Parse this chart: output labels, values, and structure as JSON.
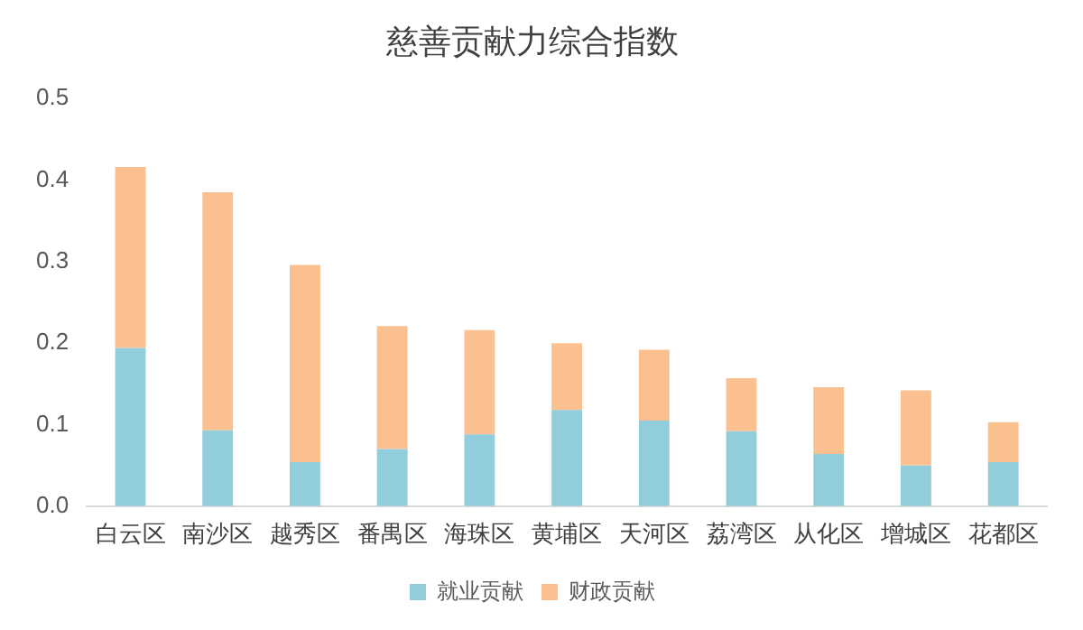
{
  "chart_data": {
    "type": "bar",
    "title": "慈善贡献力综合指数",
    "categories": [
      "白云区",
      "南沙区",
      "越秀区",
      "番禺区",
      "海珠区",
      "黄埔区",
      "天河区",
      "荔湾区",
      "从化区",
      "增城区",
      "花都区"
    ],
    "series": [
      {
        "name": "就业贡献",
        "color": "#92cddc",
        "values": [
          0.194,
          0.093,
          0.054,
          0.07,
          0.088,
          0.118,
          0.105,
          0.092,
          0.064,
          0.05,
          0.054
        ]
      },
      {
        "name": "财政贡献",
        "color": "#fac090",
        "values": [
          0.222,
          0.292,
          0.242,
          0.151,
          0.128,
          0.082,
          0.087,
          0.065,
          0.082,
          0.092,
          0.049
        ]
      }
    ],
    "stacked": true,
    "ylim": [
      0,
      0.5
    ],
    "yticks": [
      {
        "value": 0,
        "label": "0.0"
      },
      {
        "value": 0.1,
        "label": "0.1"
      },
      {
        "value": 0.2,
        "label": "0.2"
      },
      {
        "value": 0.3,
        "label": "0.3"
      },
      {
        "value": 0.4,
        "label": "0.4"
      },
      {
        "value": 0.5,
        "label": "0.5"
      }
    ],
    "grid": false,
    "legend": "bottom"
  }
}
